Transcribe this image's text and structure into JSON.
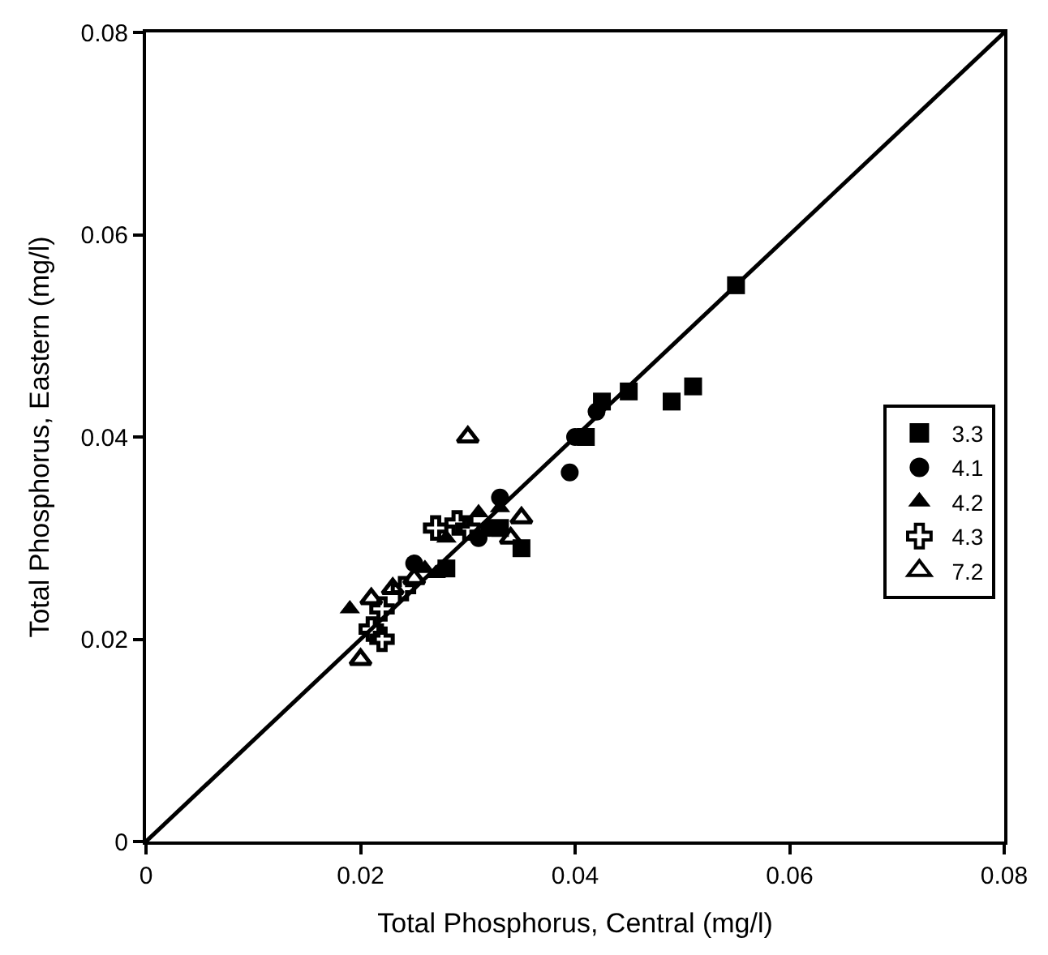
{
  "chart_data": {
    "type": "scatter",
    "xlabel": "Total Phosphorus, Central (mg/l)",
    "ylabel": "Total Phosphorus, Eastern (mg/l)",
    "xlim": [
      0,
      0.08
    ],
    "ylim": [
      0,
      0.08
    ],
    "xticks": [
      0,
      0.02,
      0.04,
      0.06,
      0.08
    ],
    "yticks": [
      0,
      0.02,
      0.04,
      0.06,
      0.08
    ],
    "legend": "right",
    "series": [
      {
        "name": "3.3",
        "color": "#000000",
        "marker": "square",
        "x": [
          0.055,
          0.0425,
          0.045,
          0.049,
          0.051,
          0.041,
          0.035,
          0.028,
          0.033
        ],
        "values": [
          0.055,
          0.0435,
          0.0445,
          0.0435,
          0.045,
          0.04,
          0.029,
          0.027,
          0.031
        ]
      },
      {
        "name": "4.1",
        "color": "#000000",
        "marker": "circle",
        "x": [
          0.04,
          0.0395,
          0.042,
          0.033,
          0.025,
          0.031,
          0.032
        ],
        "values": [
          0.04,
          0.0365,
          0.0425,
          0.034,
          0.0275,
          0.03,
          0.031
        ]
      },
      {
        "name": "4.2",
        "color": "#000000",
        "marker": "triangle",
        "x": [
          0.019,
          0.027,
          0.028,
          0.031,
          0.033,
          0.026
        ],
        "values": [
          0.023,
          0.0265,
          0.03,
          0.0325,
          0.033,
          0.027
        ]
      },
      {
        "name": "4.3",
        "color": "#000000",
        "marker": "cross",
        "x": [
          0.021,
          0.022,
          0.022,
          0.027,
          0.029,
          0.024,
          0.03
        ],
        "values": [
          0.021,
          0.02,
          0.023,
          0.031,
          0.0315,
          0.025,
          0.031
        ]
      },
      {
        "name": "7.2",
        "color": "#000000",
        "marker": "triangle-open",
        "x": [
          0.02,
          0.03,
          0.035,
          0.021,
          0.023,
          0.025,
          0.034
        ],
        "values": [
          0.018,
          0.04,
          0.032,
          0.024,
          0.025,
          0.026,
          0.03
        ]
      },
      {
        "type": "line",
        "color": "#000000",
        "marker": "none",
        "line_style": "solid",
        "x": [
          0,
          0.08
        ],
        "values": [
          0,
          0.08
        ]
      }
    ]
  }
}
